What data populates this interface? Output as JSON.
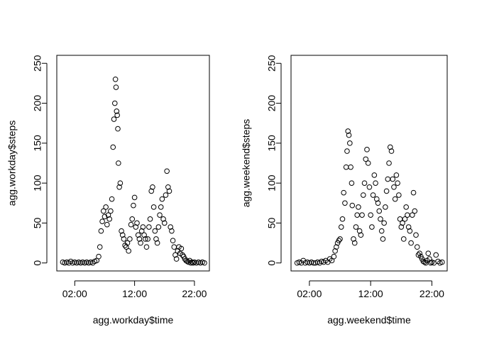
{
  "chart_data": [
    {
      "type": "scatter",
      "xlabel": "agg.workday$time",
      "ylabel": "agg.workday$steps",
      "xlim": [
        -1,
        24.5
      ],
      "ylim": [
        -10,
        260
      ],
      "x_ticks": [
        2,
        12,
        22
      ],
      "x_tick_labels": [
        "02:00",
        "12:00",
        "22:00"
      ],
      "y_ticks": [
        0,
        50,
        100,
        150,
        200,
        250
      ],
      "y_tick_labels": [
        "0",
        "50",
        "100",
        "150",
        "200",
        "250"
      ],
      "grid": false,
      "legend": "none",
      "point_color": "#000000",
      "points": [
        [
          0.0,
          1
        ],
        [
          0.33,
          0
        ],
        [
          0.67,
          1
        ],
        [
          1.0,
          0
        ],
        [
          1.33,
          2
        ],
        [
          1.67,
          0
        ],
        [
          2.0,
          1
        ],
        [
          2.33,
          0
        ],
        [
          2.67,
          1
        ],
        [
          3.0,
          0
        ],
        [
          3.33,
          1
        ],
        [
          3.67,
          0
        ],
        [
          4.0,
          1
        ],
        [
          4.33,
          0
        ],
        [
          4.67,
          1
        ],
        [
          5.0,
          0
        ],
        [
          5.33,
          2
        ],
        [
          5.67,
          3
        ],
        [
          6.0,
          8
        ],
        [
          6.2,
          20
        ],
        [
          6.4,
          40
        ],
        [
          6.6,
          52
        ],
        [
          6.8,
          65
        ],
        [
          7.0,
          58
        ],
        [
          7.2,
          70
        ],
        [
          7.4,
          48
        ],
        [
          7.6,
          60
        ],
        [
          7.8,
          55
        ],
        [
          8.0,
          65
        ],
        [
          8.2,
          80
        ],
        [
          8.4,
          145
        ],
        [
          8.55,
          180
        ],
        [
          8.7,
          200
        ],
        [
          8.8,
          230
        ],
        [
          8.9,
          220
        ],
        [
          9.0,
          190
        ],
        [
          9.1,
          185
        ],
        [
          9.2,
          168
        ],
        [
          9.3,
          125
        ],
        [
          9.45,
          95
        ],
        [
          9.6,
          100
        ],
        [
          9.8,
          40
        ],
        [
          10.0,
          35
        ],
        [
          10.2,
          30
        ],
        [
          10.4,
          22
        ],
        [
          10.6,
          20
        ],
        [
          10.8,
          25
        ],
        [
          11.0,
          15
        ],
        [
          11.2,
          30
        ],
        [
          11.4,
          48
        ],
        [
          11.6,
          55
        ],
        [
          11.8,
          72
        ],
        [
          12.0,
          82
        ],
        [
          12.2,
          45
        ],
        [
          12.4,
          50
        ],
        [
          12.6,
          35
        ],
        [
          12.8,
          30
        ],
        [
          13.0,
          25
        ],
        [
          13.2,
          40
        ],
        [
          13.4,
          45
        ],
        [
          13.6,
          35
        ],
        [
          13.8,
          30
        ],
        [
          14.0,
          20
        ],
        [
          14.2,
          30
        ],
        [
          14.4,
          45
        ],
        [
          14.6,
          55
        ],
        [
          14.8,
          90
        ],
        [
          15.0,
          95
        ],
        [
          15.2,
          70
        ],
        [
          15.4,
          40
        ],
        [
          15.6,
          30
        ],
        [
          15.8,
          25
        ],
        [
          16.0,
          45
        ],
        [
          16.2,
          60
        ],
        [
          16.4,
          70
        ],
        [
          16.6,
          80
        ],
        [
          16.8,
          55
        ],
        [
          17.0,
          50
        ],
        [
          17.2,
          85
        ],
        [
          17.4,
          115
        ],
        [
          17.6,
          95
        ],
        [
          17.8,
          90
        ],
        [
          18.0,
          45
        ],
        [
          18.2,
          40
        ],
        [
          18.4,
          28
        ],
        [
          18.6,
          20
        ],
        [
          18.8,
          10
        ],
        [
          19.0,
          5
        ],
        [
          19.2,
          15
        ],
        [
          19.4,
          20
        ],
        [
          19.6,
          12
        ],
        [
          19.8,
          18
        ],
        [
          20.0,
          10
        ],
        [
          20.2,
          8
        ],
        [
          20.4,
          5
        ],
        [
          20.6,
          3
        ],
        [
          20.8,
          2
        ],
        [
          21.0,
          1
        ],
        [
          21.2,
          3
        ],
        [
          21.4,
          0
        ],
        [
          21.6,
          1
        ],
        [
          21.8,
          0
        ],
        [
          22.0,
          1
        ],
        [
          22.33,
          0
        ],
        [
          22.67,
          1
        ],
        [
          23.0,
          0
        ],
        [
          23.33,
          1
        ],
        [
          23.67,
          0
        ]
      ]
    },
    {
      "type": "scatter",
      "xlabel": "agg.weekend$time",
      "ylabel": "agg.weekend$steps",
      "xlim": [
        -1,
        24.5
      ],
      "ylim": [
        -10,
        260
      ],
      "x_ticks": [
        2,
        12,
        22
      ],
      "x_tick_labels": [
        "02:00",
        "12:00",
        "22:00"
      ],
      "y_ticks": [
        0,
        50,
        100,
        150,
        200,
        250
      ],
      "y_tick_labels": [
        "0",
        "50",
        "100",
        "150",
        "200",
        "250"
      ],
      "grid": false,
      "legend": "none",
      "point_color": "#000000",
      "points": [
        [
          0.0,
          0
        ],
        [
          0.33,
          1
        ],
        [
          0.67,
          0
        ],
        [
          1.0,
          3
        ],
        [
          1.33,
          0
        ],
        [
          1.67,
          1
        ],
        [
          2.0,
          0
        ],
        [
          2.33,
          1
        ],
        [
          2.67,
          0
        ],
        [
          3.0,
          0
        ],
        [
          3.33,
          1
        ],
        [
          3.67,
          0
        ],
        [
          4.0,
          2
        ],
        [
          4.33,
          1
        ],
        [
          4.67,
          3
        ],
        [
          5.0,
          1
        ],
        [
          5.33,
          5
        ],
        [
          5.67,
          3
        ],
        [
          6.0,
          8
        ],
        [
          6.2,
          15
        ],
        [
          6.4,
          20
        ],
        [
          6.6,
          25
        ],
        [
          6.8,
          28
        ],
        [
          7.0,
          30
        ],
        [
          7.2,
          45
        ],
        [
          7.4,
          55
        ],
        [
          7.6,
          88
        ],
        [
          7.8,
          75
        ],
        [
          8.0,
          120
        ],
        [
          8.15,
          140
        ],
        [
          8.3,
          165
        ],
        [
          8.45,
          160
        ],
        [
          8.6,
          150
        ],
        [
          8.75,
          120
        ],
        [
          8.9,
          100
        ],
        [
          9.0,
          72
        ],
        [
          9.2,
          30
        ],
        [
          9.4,
          25
        ],
        [
          9.6,
          45
        ],
        [
          9.8,
          60
        ],
        [
          10.0,
          70
        ],
        [
          10.2,
          40
        ],
        [
          10.4,
          35
        ],
        [
          10.6,
          60
        ],
        [
          10.8,
          85
        ],
        [
          11.0,
          100
        ],
        [
          11.2,
          130
        ],
        [
          11.4,
          142
        ],
        [
          11.6,
          125
        ],
        [
          11.8,
          95
        ],
        [
          12.0,
          60
        ],
        [
          12.2,
          45
        ],
        [
          12.4,
          85
        ],
        [
          12.6,
          110
        ],
        [
          12.8,
          100
        ],
        [
          13.0,
          80
        ],
        [
          13.2,
          75
        ],
        [
          13.4,
          65
        ],
        [
          13.6,
          55
        ],
        [
          13.8,
          40
        ],
        [
          14.0,
          30
        ],
        [
          14.2,
          50
        ],
        [
          14.4,
          70
        ],
        [
          14.6,
          90
        ],
        [
          14.8,
          105
        ],
        [
          15.0,
          125
        ],
        [
          15.2,
          145
        ],
        [
          15.4,
          140
        ],
        [
          15.6,
          105
        ],
        [
          15.8,
          95
        ],
        [
          16.0,
          80
        ],
        [
          16.2,
          110
        ],
        [
          16.4,
          100
        ],
        [
          16.6,
          85
        ],
        [
          16.8,
          55
        ],
        [
          17.0,
          45
        ],
        [
          17.2,
          50
        ],
        [
          17.4,
          30
        ],
        [
          17.6,
          55
        ],
        [
          17.8,
          70
        ],
        [
          18.0,
          60
        ],
        [
          18.2,
          45
        ],
        [
          18.4,
          40
        ],
        [
          18.6,
          25
        ],
        [
          18.8,
          60
        ],
        [
          19.0,
          88
        ],
        [
          19.2,
          65
        ],
        [
          19.4,
          35
        ],
        [
          19.6,
          20
        ],
        [
          19.8,
          10
        ],
        [
          20.0,
          12
        ],
        [
          20.2,
          8
        ],
        [
          20.4,
          5
        ],
        [
          20.6,
          2
        ],
        [
          20.8,
          1
        ],
        [
          21.0,
          0
        ],
        [
          21.2,
          3
        ],
        [
          21.4,
          12
        ],
        [
          21.6,
          5
        ],
        [
          21.8,
          0
        ],
        [
          22.0,
          1
        ],
        [
          22.33,
          0
        ],
        [
          22.67,
          10
        ],
        [
          23.0,
          2
        ],
        [
          23.33,
          0
        ],
        [
          23.67,
          1
        ]
      ]
    }
  ]
}
